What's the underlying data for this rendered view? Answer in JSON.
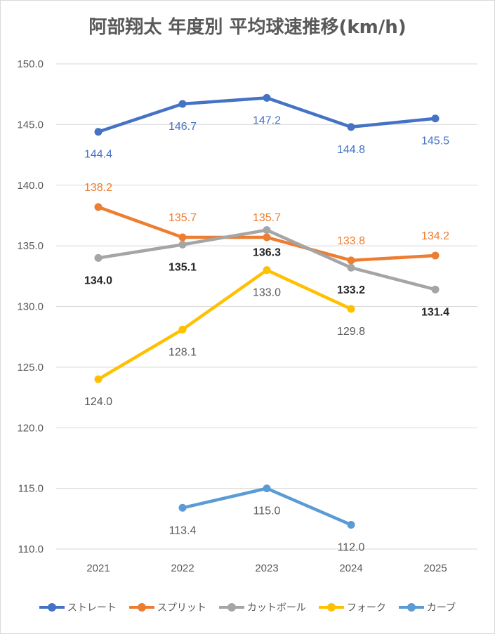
{
  "chart_data": {
    "type": "line",
    "title": "阿部翔太 年度別 平均球速推移(km/h)",
    "categories": [
      "2021",
      "2022",
      "2023",
      "2024",
      "2025"
    ],
    "ylim": [
      110.0,
      150.0
    ],
    "yticks": [
      "110.0",
      "115.0",
      "120.0",
      "125.0",
      "130.0",
      "135.0",
      "140.0",
      "145.0",
      "150.0"
    ],
    "grid": true,
    "legend_position": "bottom",
    "series": [
      {
        "name": "ストレート",
        "color": "#4472C4",
        "label_color": "#4472C4",
        "label_bold": false,
        "values": [
          144.4,
          146.7,
          147.2,
          144.8,
          145.5
        ],
        "labels": [
          "144.4",
          "146.7",
          "147.2",
          "144.8",
          "145.5"
        ],
        "label_pos": [
          "below",
          "below",
          "below",
          "below",
          "below"
        ]
      },
      {
        "name": "スプリット",
        "color": "#ED7D31",
        "label_color": "#ED7D31",
        "label_bold": false,
        "values": [
          138.2,
          135.7,
          135.7,
          133.8,
          134.2
        ],
        "labels": [
          "138.2",
          "135.7",
          "135.7",
          "133.8",
          "134.2"
        ],
        "label_pos": [
          "above",
          "above",
          "above",
          "above",
          "above"
        ]
      },
      {
        "name": "カットボール",
        "color": "#A5A5A5",
        "label_color": "#262626",
        "label_bold": true,
        "values": [
          134.0,
          135.1,
          136.3,
          133.2,
          131.4
        ],
        "labels": [
          "134.0",
          "135.1",
          "136.3",
          "133.2",
          "131.4"
        ],
        "label_pos": [
          "below",
          "below",
          "below",
          "below",
          "below"
        ]
      },
      {
        "name": "フォーク",
        "color": "#FFC000",
        "label_color": "#595959",
        "label_bold": false,
        "values": [
          124.0,
          128.1,
          133.0,
          129.8,
          null
        ],
        "labels": [
          "124.0",
          "128.1",
          "133.0",
          "129.8",
          null
        ],
        "label_pos": [
          "below",
          "below",
          "below",
          "below",
          "below"
        ]
      },
      {
        "name": "カーブ",
        "color": "#5B9BD5",
        "label_color": "#595959",
        "label_bold": false,
        "values": [
          null,
          113.4,
          115.0,
          112.0,
          null
        ],
        "labels": [
          null,
          "113.4",
          "115.0",
          "112.0",
          null
        ],
        "label_pos": [
          "below",
          "below",
          "below",
          "below",
          "below"
        ]
      }
    ]
  }
}
